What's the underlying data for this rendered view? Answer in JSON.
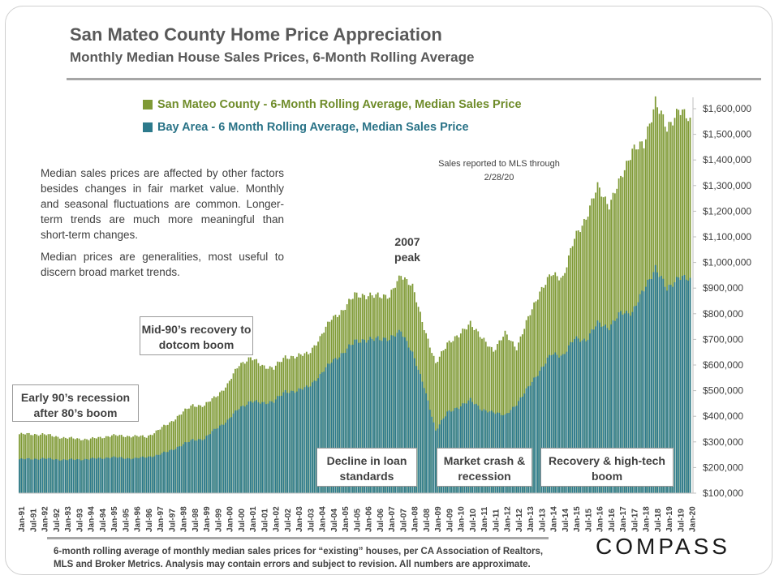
{
  "chart_data": {
    "type": "bar",
    "title": "San Mateo County Home Price Appreciation",
    "subtitle": "Monthly Median House Sales Prices, 6-Month Rolling Average",
    "x_range": [
      "Jan-91",
      "Jan-20"
    ],
    "y_ticks": [
      "$100,000",
      "$200,000",
      "$300,000",
      "$400,000",
      "$500,000",
      "$600,000",
      "$700,000",
      "$800,000",
      "$900,000",
      "$1,000,000",
      "$1,100,000",
      "$1,200,000",
      "$1,300,000",
      "$1,400,000",
      "$1,500,000",
      "$1,600,000"
    ],
    "ylim": [
      100000,
      1650000
    ],
    "x_tick_labels": [
      "Jan-91",
      "Jul-91",
      "Jan-92",
      "Jul-92",
      "Jan-93",
      "Jul-93",
      "Jan-94",
      "Jul-94",
      "Jan-95",
      "Jul-95",
      "Jan-96",
      "Jul-96",
      "Jan-97",
      "Jul-97",
      "Jan-98",
      "Jul-98",
      "Jan-99",
      "Jul-99",
      "Jan-00",
      "Jul-00",
      "Jan-01",
      "Jul-01",
      "Jan-02",
      "Jul-02",
      "Jan-03",
      "Jul-03",
      "Jan-04",
      "Jul-04",
      "Jan-05",
      "Jul-05",
      "Jan-06",
      "Jul-06",
      "Jan-07",
      "Jul-07",
      "Jan-08",
      "Jul-08",
      "Jan-09",
      "Jul-09",
      "Jan-10",
      "Jul-10",
      "Jan-11",
      "Jul-11",
      "Jan-12",
      "Jul-12",
      "Jan-13",
      "Jul-13",
      "Jan-14",
      "Jul-14",
      "Jan-15",
      "Jul-15",
      "Jan-16",
      "Jul-16",
      "Jan-17",
      "Jul-17",
      "Jan-18",
      "Jul-18",
      "Jan-19",
      "Jul-19",
      "Jan-20"
    ],
    "series": [
      {
        "name": "San Mateo County - 6-Month Rolling Average, Median Sales Price",
        "color": "#7f9a35",
        "anchors": [
          [
            "1991-01",
            330000
          ],
          [
            "1992-01",
            330000
          ],
          [
            "1993-01",
            315000
          ],
          [
            "1994-01",
            310000
          ],
          [
            "1995-01",
            325000
          ],
          [
            "1996-01",
            322000
          ],
          [
            "1996-07",
            320000
          ],
          [
            "1997-01",
            345000
          ],
          [
            "1997-07",
            375000
          ],
          [
            "1998-01",
            410000
          ],
          [
            "1998-07",
            445000
          ],
          [
            "1999-01",
            440000
          ],
          [
            "1999-07",
            480000
          ],
          [
            "2000-01",
            520000
          ],
          [
            "2000-07",
            605000
          ],
          [
            "2001-01",
            625000
          ],
          [
            "2001-07",
            600000
          ],
          [
            "2002-01",
            585000
          ],
          [
            "2002-07",
            635000
          ],
          [
            "2003-01",
            630000
          ],
          [
            "2003-07",
            650000
          ],
          [
            "2004-01",
            700000
          ],
          [
            "2004-07",
            790000
          ],
          [
            "2005-01",
            805000
          ],
          [
            "2005-07",
            885000
          ],
          [
            "2006-01",
            860000
          ],
          [
            "2006-07",
            880000
          ],
          [
            "2007-01",
            860000
          ],
          [
            "2007-07",
            960000
          ],
          [
            "2008-01",
            900000
          ],
          [
            "2008-07",
            750000
          ],
          [
            "2009-01",
            600000
          ],
          [
            "2009-07",
            690000
          ],
          [
            "2010-01",
            710000
          ],
          [
            "2010-07",
            770000
          ],
          [
            "2011-01",
            700000
          ],
          [
            "2011-07",
            660000
          ],
          [
            "2012-01",
            720000
          ],
          [
            "2012-07",
            670000
          ],
          [
            "2013-01",
            780000
          ],
          [
            "2013-07",
            890000
          ],
          [
            "2014-01",
            950000
          ],
          [
            "2014-07",
            945000
          ],
          [
            "2015-01",
            1090000
          ],
          [
            "2015-07",
            1180000
          ],
          [
            "2016-01",
            1290000
          ],
          [
            "2016-07",
            1230000
          ],
          [
            "2017-01",
            1320000
          ],
          [
            "2017-07",
            1450000
          ],
          [
            "2018-01",
            1450000
          ],
          [
            "2018-07",
            1640000
          ],
          [
            "2019-01",
            1510000
          ],
          [
            "2019-07",
            1610000
          ],
          [
            "2020-01",
            1540000
          ]
        ]
      },
      {
        "name": "Bay Area - 6 Month Rolling Average, Median Sales Price",
        "color": "#2d7a8c",
        "anchors": [
          [
            "1991-01",
            232000
          ],
          [
            "1992-01",
            235000
          ],
          [
            "1993-01",
            230000
          ],
          [
            "1994-01",
            233000
          ],
          [
            "1995-01",
            240000
          ],
          [
            "1996-01",
            235000
          ],
          [
            "1997-01",
            248000
          ],
          [
            "1998-01",
            285000
          ],
          [
            "1998-07",
            310000
          ],
          [
            "1999-01",
            310000
          ],
          [
            "1999-07",
            355000
          ],
          [
            "2000-01",
            380000
          ],
          [
            "2000-07",
            435000
          ],
          [
            "2001-01",
            455000
          ],
          [
            "2001-07",
            455000
          ],
          [
            "2002-01",
            455000
          ],
          [
            "2002-07",
            500000
          ],
          [
            "2003-01",
            495000
          ],
          [
            "2003-07",
            520000
          ],
          [
            "2004-01",
            555000
          ],
          [
            "2004-07",
            620000
          ],
          [
            "2005-01",
            640000
          ],
          [
            "2005-07",
            700000
          ],
          [
            "2006-01",
            690000
          ],
          [
            "2006-07",
            710000
          ],
          [
            "2007-01",
            695000
          ],
          [
            "2007-07",
            740000
          ],
          [
            "2008-01",
            640000
          ],
          [
            "2008-07",
            520000
          ],
          [
            "2009-01",
            340000
          ],
          [
            "2009-07",
            420000
          ],
          [
            "2010-01",
            430000
          ],
          [
            "2010-07",
            470000
          ],
          [
            "2011-01",
            420000
          ],
          [
            "2011-07",
            420000
          ],
          [
            "2012-01",
            400000
          ],
          [
            "2012-07",
            450000
          ],
          [
            "2013-01",
            510000
          ],
          [
            "2013-07",
            580000
          ],
          [
            "2014-01",
            640000
          ],
          [
            "2014-07",
            640000
          ],
          [
            "2015-01",
            700000
          ],
          [
            "2015-07",
            700000
          ],
          [
            "2016-01",
            760000
          ],
          [
            "2016-07",
            750000
          ],
          [
            "2017-01",
            800000
          ],
          [
            "2017-07",
            810000
          ],
          [
            "2018-01",
            890000
          ],
          [
            "2018-07",
            985000
          ],
          [
            "2019-01",
            890000
          ],
          [
            "2019-07",
            950000
          ],
          [
            "2020-01",
            925000
          ]
        ]
      }
    ],
    "legend_position": "top-left",
    "grid": false
  },
  "header": {
    "title": "San Mateo County Home Price Appreciation",
    "subtitle": "Monthly Median House Sales Prices, 6-Month Rolling Average"
  },
  "legend": {
    "sm": "San Mateo County - 6-Month Rolling Average, Median Sales Price",
    "ba": "Bay Area - 6 Month Rolling Average, Median Sales Price"
  },
  "notes": {
    "mls": "Sales reported to MLS through 2/28/20",
    "p1": "Median sales prices are affected by other factors besides changes in fair market value. Monthly and seasonal fluctuations are common. Longer-term trends are much more meaningful than short-term changes.",
    "p2": "Median prices are generalities, most useful to discern broad market trends."
  },
  "annotations": {
    "early90s": "Early 90’s recession after 80’s boom",
    "mid90s": "Mid-90’s recovery to dotcom boom",
    "peak2007": "2007 peak",
    "decline": "Decline in loan standards",
    "crash": "Market crash & recession",
    "recovery": "Recovery & high-tech boom"
  },
  "footer": {
    "note_line1": "6-month rolling average of monthly median sales prices for “existing” houses, per CA Association of Realtors,",
    "note_line2": "MLS and Broker Metrics.  Analysis may contain errors and subject to revision. All numbers are approximate.",
    "logo": "COMPASS"
  }
}
